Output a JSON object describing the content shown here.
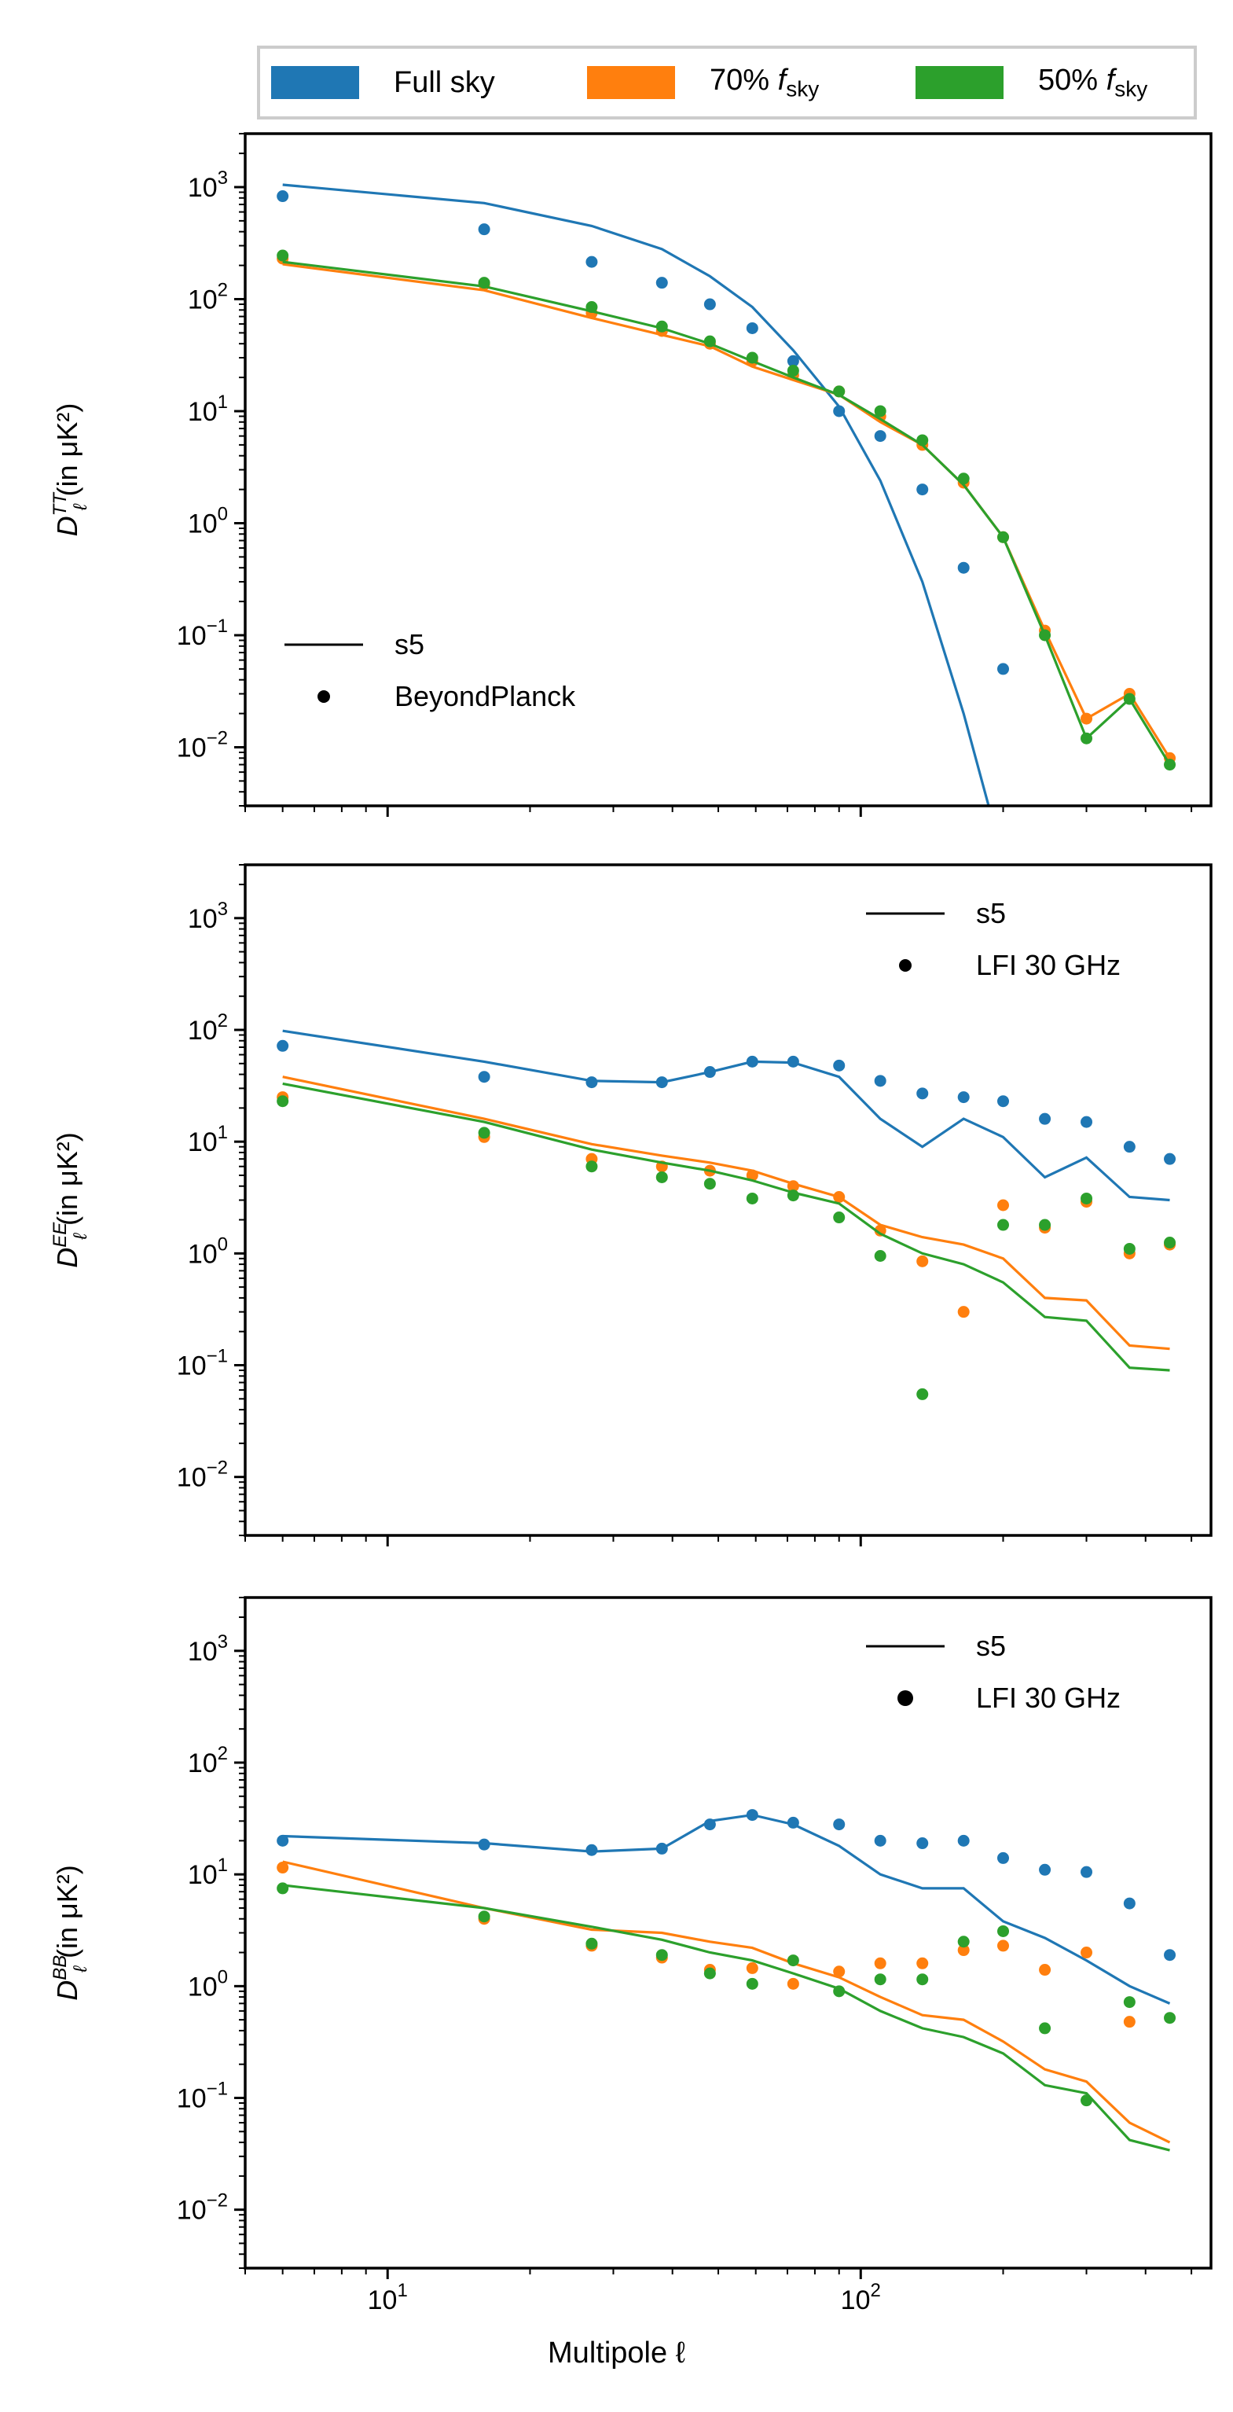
{
  "legend": {
    "full_label": "Full sky",
    "p70_label": "70%",
    "p50_label": "50%",
    "fsky_symbol": "f",
    "fsky_sub": "sky"
  },
  "xlabel": "Multipole ℓ",
  "colors": {
    "full": "#1f77b4",
    "p70": "#ff7f0e",
    "p50": "#2ca02c"
  },
  "chart_data": [
    {
      "type": "line",
      "id": "TT",
      "ylabel": "D_ℓ^TT (in μK²)",
      "xlim": [
        5,
        550
      ],
      "ylim": [
        0.003,
        3000
      ],
      "xscale": "log",
      "yscale": "log",
      "legend": {
        "line_label": "s5",
        "dot_label": "BeyondPlanck",
        "placement": "lower-left"
      },
      "x": [
        6,
        16,
        27,
        38,
        48,
        59,
        72,
        90,
        110,
        135,
        165,
        200,
        245,
        300,
        370,
        450
      ],
      "series": [
        {
          "name": "Full sky",
          "line": [
            1050,
            720,
            450,
            280,
            160,
            85,
            35,
            11,
            2.4,
            0.3,
            0.02,
            0.001,
            null,
            null,
            null,
            null
          ],
          "dots": [
            830,
            420,
            215,
            140,
            90,
            55,
            28,
            10,
            6,
            2,
            0.4,
            0.05,
            null,
            null,
            null,
            null
          ]
        },
        {
          "name": "70% fsky",
          "line": [
            205,
            120,
            68,
            48,
            38,
            25,
            19,
            14,
            8,
            5,
            2.2,
            0.75,
            0.11,
            0.018,
            0.03,
            0.008
          ],
          "dots": [
            230,
            135,
            75,
            52,
            40,
            28,
            21,
            15,
            9,
            5,
            2.3,
            0.75,
            0.11,
            0.018,
            0.03,
            0.008
          ]
        },
        {
          "name": "50% fsky",
          "line": [
            215,
            130,
            78,
            55,
            40,
            28,
            20,
            14,
            8.5,
            5,
            2.2,
            0.75,
            0.1,
            0.012,
            0.027,
            0.007
          ],
          "dots": [
            245,
            140,
            85,
            57,
            42,
            30,
            23,
            15,
            10,
            5.5,
            2.5,
            0.75,
            0.1,
            0.012,
            0.027,
            0.007
          ]
        }
      ]
    },
    {
      "type": "line",
      "id": "EE",
      "ylabel": "D_ℓ^EE (in μK²)",
      "xlim": [
        5,
        550
      ],
      "ylim": [
        0.003,
        3000
      ],
      "xscale": "log",
      "yscale": "log",
      "legend": {
        "line_label": "s5",
        "dot_label": "LFI 30 GHz",
        "placement": "upper-right"
      },
      "x": [
        6,
        16,
        27,
        38,
        48,
        59,
        72,
        90,
        110,
        135,
        165,
        200,
        245,
        300,
        370,
        450
      ],
      "series": [
        {
          "name": "Full sky",
          "line": [
            98,
            52,
            35,
            34,
            42,
            52,
            51,
            38,
            16,
            9,
            16,
            11,
            4.8,
            7.2,
            3.2,
            3
          ],
          "dots": [
            72,
            38,
            34,
            34,
            42,
            52,
            52,
            48,
            35,
            27,
            25,
            23,
            16,
            15,
            9,
            7
          ]
        },
        {
          "name": "70% fsky",
          "line": [
            38,
            16,
            9.5,
            7.5,
            6.5,
            5.5,
            4.2,
            3.2,
            1.8,
            1.4,
            1.2,
            0.9,
            0.4,
            0.38,
            0.15,
            0.14
          ],
          "dots": [
            25,
            11,
            7,
            6,
            5.5,
            5,
            4,
            3.2,
            1.6,
            0.85,
            0.3,
            2.7,
            1.7,
            2.9,
            1.0,
            1.2
          ]
        },
        {
          "name": "50% fsky",
          "line": [
            33,
            15,
            8.5,
            6.5,
            5.5,
            4.5,
            3.5,
            2.8,
            1.5,
            1,
            0.8,
            0.55,
            0.27,
            0.25,
            0.095,
            0.09
          ],
          "dots": [
            23,
            12,
            6,
            4.8,
            4.2,
            3.1,
            3.3,
            2.1,
            0.95,
            0.055,
            null,
            1.8,
            1.8,
            3.1,
            1.1,
            1.25
          ]
        }
      ]
    },
    {
      "type": "line",
      "id": "BB",
      "ylabel": "D_ℓ^BB (in μK²)",
      "xlim": [
        5,
        550
      ],
      "ylim": [
        0.003,
        3000
      ],
      "xscale": "log",
      "yscale": "log",
      "legend": {
        "line_label": "s5",
        "dot_label": "LFI 30 GHz",
        "placement": "upper-right"
      },
      "x": [
        6,
        16,
        27,
        38,
        48,
        59,
        72,
        90,
        110,
        135,
        165,
        200,
        245,
        300,
        370,
        450
      ],
      "series": [
        {
          "name": "Full sky",
          "line": [
            22,
            19,
            16,
            17,
            30,
            34,
            28,
            18,
            10,
            7.5,
            7.5,
            3.8,
            2.7,
            1.7,
            1,
            0.7
          ],
          "dots": [
            20,
            18.5,
            16.5,
            17,
            28,
            34,
            29,
            28,
            20,
            19,
            20,
            14,
            11,
            10.5,
            5.5,
            1.9
          ]
        },
        {
          "name": "70% fsky",
          "line": [
            13,
            5,
            3.2,
            3,
            2.5,
            2.2,
            1.6,
            1.2,
            0.8,
            0.55,
            0.5,
            0.32,
            0.18,
            0.14,
            0.06,
            0.04
          ],
          "dots": [
            11.5,
            4,
            2.3,
            1.8,
            1.4,
            1.45,
            1.05,
            1.35,
            1.6,
            1.6,
            2.1,
            2.3,
            1.4,
            2,
            0.48,
            null
          ]
        },
        {
          "name": "50% fsky",
          "line": [
            8,
            5,
            3.4,
            2.6,
            2,
            1.7,
            1.3,
            0.95,
            0.6,
            0.42,
            0.35,
            0.25,
            0.13,
            0.11,
            0.042,
            0.034
          ],
          "dots": [
            7.5,
            4.2,
            2.4,
            1.9,
            1.3,
            1.05,
            1.7,
            0.9,
            1.15,
            1.15,
            2.5,
            3.1,
            0.42,
            0.095,
            0.72,
            0.52
          ]
        }
      ]
    }
  ]
}
